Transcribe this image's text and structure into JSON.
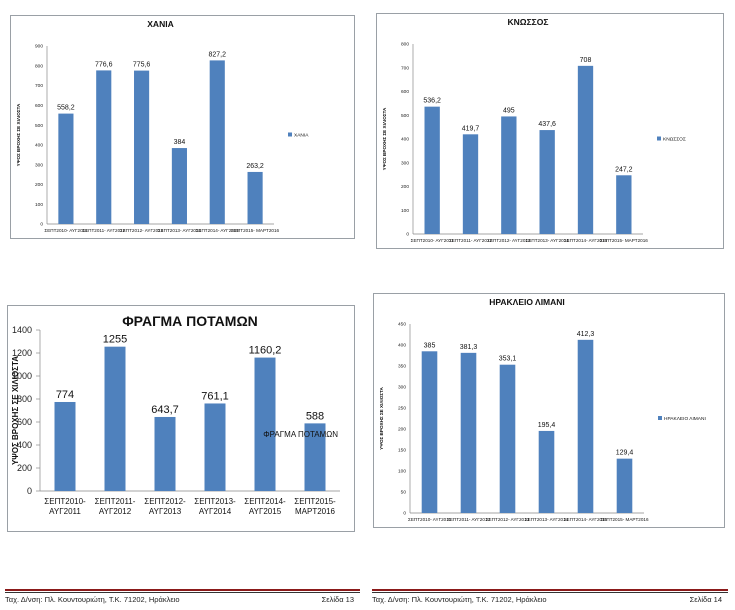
{
  "chart_data": [
    {
      "type": "bar",
      "title": "ΧΑΝΙΑ",
      "ylabel": "ΥΨΟΣ ΒΡΟΧΗΣ ΣΕ ΧΙΛΙΟΣΤΑ",
      "legend": "ΧΑΝΙΑ",
      "categories": [
        "ΣΕΠΤ2010- ΑΥΓ2011",
        "ΣΕΠΤ2011- ΑΥΓ2012",
        "ΣΕΠΤ2012- ΑΥΓ2013",
        "ΣΕΠΤ2013- ΑΥΓ2014",
        "ΣΕΠΤ2014- ΑΥΓ2015",
        "ΣΕΠΤ2015- ΜΑΡΤ2016"
      ],
      "values": [
        558.2,
        776.6,
        775.6,
        384,
        827.2,
        263.2
      ],
      "value_labels": [
        "558,2",
        "776,6",
        "775,6",
        "384",
        "827,2",
        "263,2"
      ],
      "ylim": [
        0,
        900
      ],
      "yticks": [
        0,
        100,
        200,
        300,
        400,
        500,
        600,
        700,
        800,
        900
      ],
      "bar_color": "#4f81bd"
    },
    {
      "type": "bar",
      "title": "ΚΝΩΣΣΟΣ",
      "ylabel": "ΥΨΟΣ ΒΡΟΧΗΣ ΣΕ ΧΙΛΙΟΣΤΑ",
      "legend": "ΚΝΩΣΣΟΣ",
      "categories": [
        "ΣΕΠΤ2010- ΑΥΓ2011",
        "ΣΕΠΤ2011- ΑΥΓ2012",
        "ΣΕΠΤ2012- ΑΥΓ2013",
        "ΣΕΠΤ2013- ΑΥΓ2014",
        "ΣΕΠΤ2014- ΑΥΓ2015",
        "ΣΕΠΤ2015- ΜΑΡΤ2016"
      ],
      "values": [
        536.2,
        419.7,
        495,
        437.6,
        708,
        247.2
      ],
      "value_labels": [
        "536,2",
        "419,7",
        "495",
        "437,6",
        "708",
        "247,2"
      ],
      "ylim": [
        0,
        800
      ],
      "yticks": [
        0,
        100,
        200,
        300,
        400,
        500,
        600,
        700,
        800
      ],
      "bar_color": "#4f81bd"
    },
    {
      "type": "bar",
      "title": "ΦΡΑΓΜΑ ΠΟΤΑΜΩΝ",
      "ylabel": "ΥΨΟΣ ΒΡΟΧΗΣ ΣΕ ΧΙΛΙΟΣΤΑ",
      "legend": "ΦΡΑΓΜΑ ΠΟΤΑΜΩΝ",
      "categories": [
        "ΣΕΠΤ2010- ΑΥΓ2011",
        "ΣΕΠΤ2011- ΑΥΓ2012",
        "ΣΕΠΤ2012- ΑΥΓ2013",
        "ΣΕΠΤ2013- ΑΥΓ2014",
        "ΣΕΠΤ2014- ΑΥΓ2015",
        "ΣΕΠΤ2015- ΜΑΡΤ2016"
      ],
      "values": [
        774,
        1255,
        643.7,
        761.1,
        1160.2,
        588
      ],
      "value_labels": [
        "774",
        "1255",
        "643,7",
        "761,1",
        "1160,2",
        "588"
      ],
      "ylim": [
        0,
        1400
      ],
      "yticks": [
        0,
        200,
        400,
        600,
        800,
        1000,
        1200,
        1400
      ],
      "bar_color": "#4f81bd"
    },
    {
      "type": "bar",
      "title": "ΗΡΑΚΛΕΙΟ ΛΙΜΑΝΙ",
      "ylabel": "ΥΨΟΣ ΒΡΟΧΗΣ ΣΕ ΧΙΛΙΟΣΤΑ",
      "legend": "ΗΡΑΚΛΕΙΟ ΛΙΜΑΝΙ",
      "categories": [
        "ΣΕΠΤ2010- ΑΥΓ2011",
        "ΣΕΠΤ2011- ΑΥΓ2012",
        "ΣΕΠΤ2012- ΑΥΓ2013",
        "ΣΕΠΤ2013- ΑΥΓ2014",
        "ΣΕΠΤ2014- ΑΥΓ2015",
        "ΣΕΠΤ2015- ΜΑΡΤ2016"
      ],
      "values": [
        385,
        381.3,
        353.1,
        195.4,
        412.3,
        129.4
      ],
      "value_labels": [
        "385",
        "381,3",
        "353,1",
        "195,4",
        "412,3",
        "129,4"
      ],
      "ylim": [
        0,
        450
      ],
      "yticks": [
        0,
        50,
        100,
        150,
        200,
        250,
        300,
        350,
        400,
        450
      ],
      "bar_color": "#4f81bd"
    }
  ],
  "footers": [
    {
      "address": "Ταχ. Δ/νση: Πλ. Κουντουριώτη, Τ.Κ. 71202, Ηράκλειο",
      "page": "Σελίδα 13"
    },
    {
      "address": "Ταχ. Δ/νση: Πλ. Κουντουριώτη, Τ.Κ. 71202, Ηράκλειο",
      "page": "Σελίδα 14"
    }
  ]
}
